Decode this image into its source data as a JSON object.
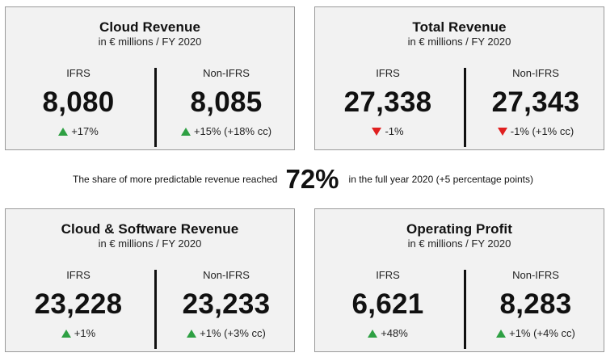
{
  "colors": {
    "up": "#2ea043",
    "down": "#e02020",
    "card_bg": "#f2f2f2"
  },
  "cards": [
    {
      "title": "Cloud Revenue",
      "subtitle": "in € millions / FY 2020",
      "left": {
        "label": "IFRS",
        "value": "8,080",
        "direction": "up",
        "change": "+17%"
      },
      "right": {
        "label": "Non-IFRS",
        "value": "8,085",
        "direction": "up",
        "change": "+15% (+18% cc)"
      }
    },
    {
      "title": "Total Revenue",
      "subtitle": "in € millions / FY 2020",
      "left": {
        "label": "IFRS",
        "value": "27,338",
        "direction": "down",
        "change": "-1%"
      },
      "right": {
        "label": "Non-IFRS",
        "value": "27,343",
        "direction": "down",
        "change": "-1% (+1% cc)"
      }
    },
    {
      "title": "Cloud & Software Revenue",
      "subtitle": "in € millions / FY 2020",
      "left": {
        "label": "IFRS",
        "value": "23,228",
        "direction": "up",
        "change": "+1%"
      },
      "right": {
        "label": "Non-IFRS",
        "value": "23,233",
        "direction": "up",
        "change": "+1% (+3% cc)"
      }
    },
    {
      "title": "Operating Profit",
      "subtitle": "in € millions / FY 2020",
      "left": {
        "label": "IFRS",
        "value": "6,621",
        "direction": "up",
        "change": "+48%"
      },
      "right": {
        "label": "Non-IFRS",
        "value": "8,283",
        "direction": "up",
        "change": "+1% (+4% cc)"
      }
    }
  ],
  "banner": {
    "prefix": "The share of more predictable revenue reached",
    "percent": "72%",
    "suffix": "in the full year 2020 (+5 percentage points)"
  }
}
